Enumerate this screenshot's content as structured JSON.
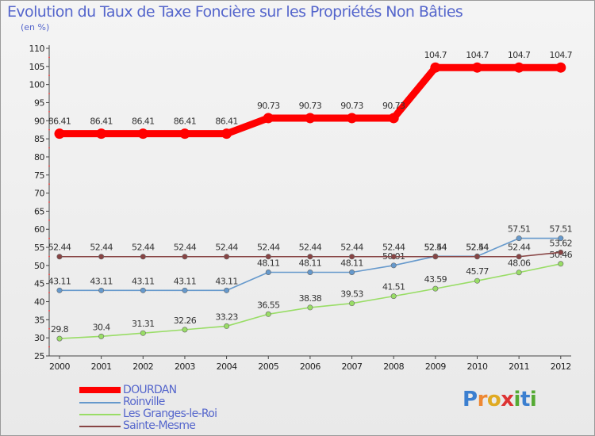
{
  "chart_data": {
    "type": "line",
    "title": "Evolution du Taux de Taxe Foncière sur les Propriétés Non Bâties",
    "subtitle": "(en %)",
    "xlabel": "",
    "ylabel": "",
    "categories": [
      "2000",
      "2001",
      "2002",
      "2003",
      "2004",
      "2005",
      "2006",
      "2007",
      "2008",
      "2009",
      "2010",
      "2011",
      "2012"
    ],
    "ylim": [
      25,
      110
    ],
    "yticks": [
      25,
      30,
      35,
      40,
      45,
      50,
      55,
      60,
      65,
      70,
      75,
      80,
      85,
      90,
      95,
      100,
      105,
      110
    ],
    "grid": false,
    "legend_position": "bottom-left",
    "series": [
      {
        "name": "DOURDAN",
        "color": "#ff0000",
        "values": [
          86.41,
          86.41,
          86.41,
          86.41,
          86.41,
          90.73,
          90.73,
          90.73,
          90.73,
          104.7,
          104.7,
          104.7,
          104.7
        ],
        "labels": [
          "86.41",
          "86.41",
          "86.41",
          "86.41",
          "86.41",
          "90.73",
          "90.73",
          "90.73",
          "90.73",
          "104.7",
          "104.7",
          "104.7",
          "104.7"
        ]
      },
      {
        "name": "Roinville",
        "color": "#6699cc",
        "values": [
          43.11,
          43.11,
          43.11,
          43.11,
          43.11,
          48.11,
          48.11,
          48.11,
          50.01,
          52.54,
          52.54,
          57.51,
          57.51
        ],
        "labels": [
          "43.11",
          "43.11",
          "43.11",
          "43.11",
          "43.11",
          "48.11",
          "48.11",
          "48.11",
          "50.01",
          "52.54",
          "52.54",
          "57.51",
          "57.51"
        ]
      },
      {
        "name": "Les Granges-le-Roi",
        "color": "#99dd66",
        "values": [
          29.8,
          30.4,
          31.31,
          32.26,
          33.23,
          36.55,
          38.38,
          39.53,
          41.51,
          43.59,
          45.77,
          48.06,
          50.46
        ],
        "labels": [
          "29.8",
          "30.4",
          "31.31",
          "32.26",
          "33.23",
          "36.55",
          "38.38",
          "39.53",
          "41.51",
          "43.59",
          "45.77",
          "48.06",
          "50.46"
        ]
      },
      {
        "name": "Sainte-Mesme",
        "color": "#884444",
        "values": [
          52.44,
          52.44,
          52.44,
          52.44,
          52.44,
          52.44,
          52.44,
          52.44,
          52.44,
          52.44,
          52.44,
          52.44,
          53.62
        ],
        "labels": [
          "52.44",
          "52.44",
          "52.44",
          "52.44",
          "52.44",
          "52.44",
          "52.44",
          "52.44",
          "52.44",
          "52.44",
          "52.44",
          "52.44",
          "53.62"
        ]
      }
    ]
  },
  "logo": {
    "text": "Proxiti",
    "letters": [
      "P",
      "r",
      "o",
      "x",
      "i",
      "t",
      "i"
    ],
    "letter_colors": [
      "#3b7fd0",
      "#ee8833",
      "#e0aa22",
      "#dd3333",
      "#55aa33",
      "#3b7fd0",
      "#55aa33"
    ]
  }
}
